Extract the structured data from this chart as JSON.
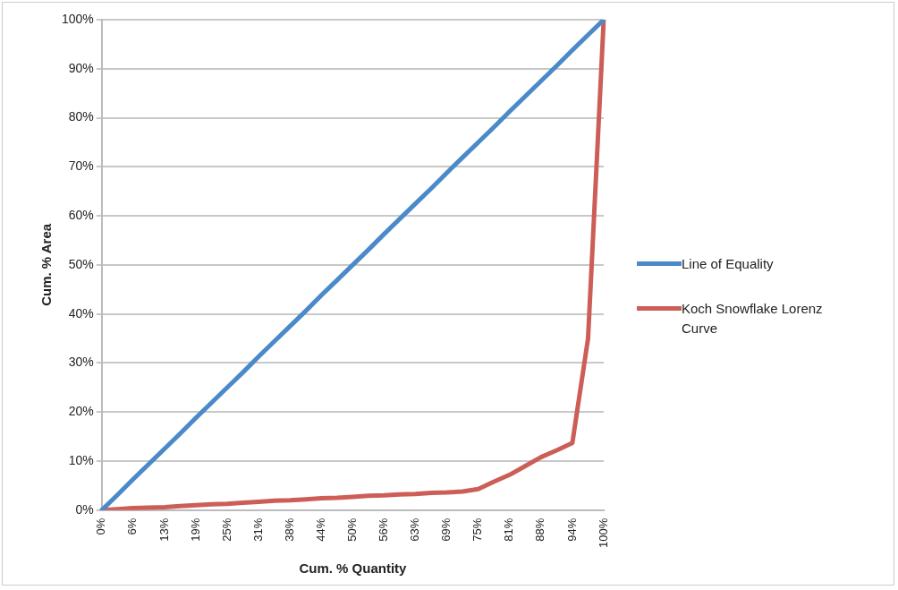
{
  "chart_data": {
    "type": "line",
    "xlabel": "Cum. % Quantity",
    "ylabel": "Cum. % Area",
    "categories": [
      "0%",
      null,
      "6%",
      null,
      "13%",
      null,
      "19%",
      null,
      "25%",
      null,
      "31%",
      null,
      "38%",
      null,
      "44%",
      null,
      "50%",
      null,
      "56%",
      null,
      "63%",
      null,
      "69%",
      null,
      "75%",
      null,
      "81%",
      null,
      "88%",
      null,
      "94%",
      null,
      "100%"
    ],
    "series": [
      {
        "name": "Line of Equality",
        "color": "#4a8ac9",
        "values": [
          0,
          3.1,
          6.3,
          9.4,
          12.5,
          15.6,
          18.8,
          21.9,
          25,
          28.1,
          31.3,
          34.4,
          37.5,
          40.6,
          43.8,
          46.9,
          50,
          53.1,
          56.3,
          59.4,
          62.5,
          65.6,
          68.8,
          71.9,
          75,
          78.1,
          81.3,
          84.4,
          87.5,
          90.6,
          93.8,
          96.9,
          100
        ]
      },
      {
        "name": "Koch Snowflake Lorenz Curve",
        "color": "#cc5e57",
        "values": [
          0,
          0.2,
          0.4,
          0.5,
          0.6,
          0.8,
          1,
          1.2,
          1.3,
          1.5,
          1.7,
          1.9,
          2,
          2.2,
          2.4,
          2.5,
          2.7,
          2.9,
          3,
          3.2,
          3.3,
          3.5,
          3.6,
          3.8,
          4.3,
          5.8,
          7.2,
          9,
          10.8,
          12.2,
          13.7,
          35,
          100
        ]
      }
    ],
    "ylim": [
      0,
      100
    ],
    "yticks": [
      {
        "value": 0,
        "label": "0%"
      },
      {
        "value": 10,
        "label": "10%"
      },
      {
        "value": 20,
        "label": "20%"
      },
      {
        "value": 30,
        "label": "30%"
      },
      {
        "value": 40,
        "label": "40%"
      },
      {
        "value": 50,
        "label": "50%"
      },
      {
        "value": 60,
        "label": "60%"
      },
      {
        "value": 70,
        "label": "70%"
      },
      {
        "value": 80,
        "label": "80%"
      },
      {
        "value": 90,
        "label": "90%"
      },
      {
        "value": 100,
        "label": "100%"
      }
    ],
    "grid": "y",
    "legend": "right",
    "marker": "none",
    "line_style": "solid"
  }
}
